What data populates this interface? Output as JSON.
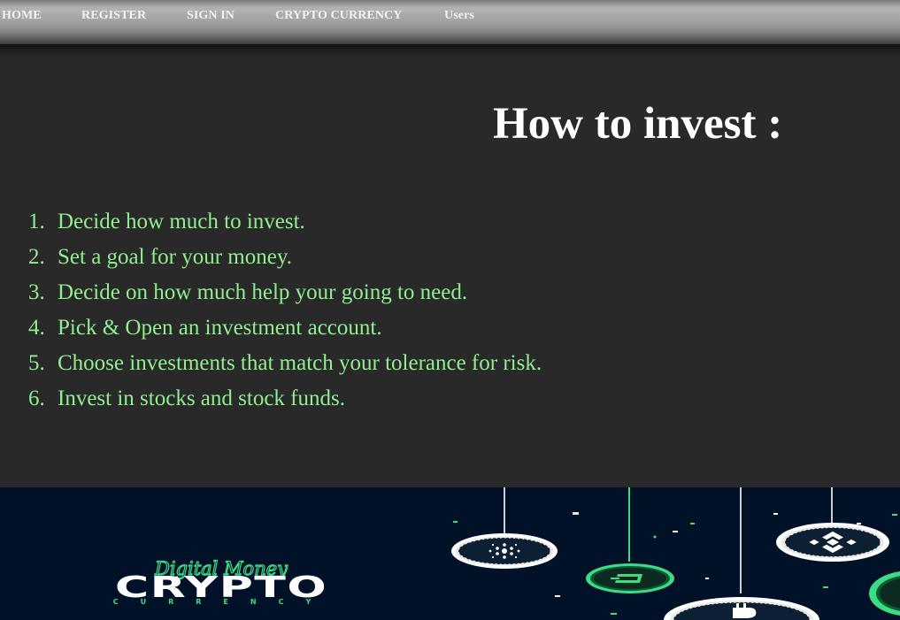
{
  "nav": {
    "items": [
      {
        "label": "HOME"
      },
      {
        "label": "REGISTER"
      },
      {
        "label": "SIGN IN"
      },
      {
        "label": "CRYPTO CURRENCY"
      },
      {
        "label": "Users"
      }
    ]
  },
  "main": {
    "title": "How to invest :",
    "steps": [
      {
        "num": "1.",
        "text": "Decide how much to invest."
      },
      {
        "num": "2.",
        "text": "Set a goal for your money."
      },
      {
        "num": "3.",
        "text": "Decide on how much help your going to need."
      },
      {
        "num": "4.",
        "text": "Pick & Open an investment account."
      },
      {
        "num": "5.",
        "text": "Choose investments that match your tolerance for risk."
      },
      {
        "num": "6.",
        "text": "Invest in stocks and stock funds."
      }
    ]
  },
  "banner": {
    "tagline": "Digital Money",
    "brand": "CRYPTO",
    "sub": "CURRENCY",
    "coins": [
      "cardano-coin-icon",
      "dash-coin-icon",
      "bitcoin-coin-icon",
      "binance-coin-icon"
    ],
    "colors": {
      "background": "#001128",
      "accent": "#3ddc84",
      "text": "#ffffff"
    }
  },
  "colors": {
    "page_background": "#292929",
    "title": "#ffffff",
    "list_text": "#90ee90"
  }
}
